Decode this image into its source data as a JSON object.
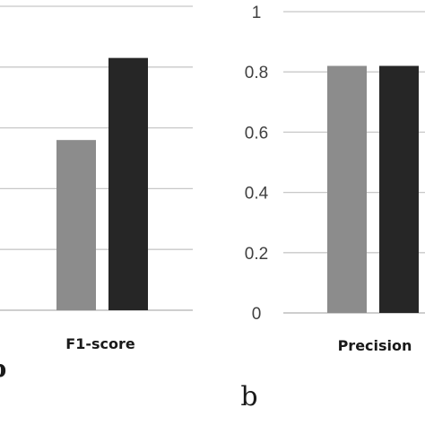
{
  "chart_data": [
    {
      "type": "bar",
      "panel_label": "b",
      "categories": [
        "F1-score"
      ],
      "series": [
        {
          "values": [
            0.56
          ],
          "color": "#8c8c8c"
        },
        {
          "values": [
            0.83
          ],
          "color": "#262626"
        }
      ],
      "ylim": [
        0,
        1
      ],
      "yticks": [],
      "grid": true
    },
    {
      "type": "bar",
      "panel_label": "b",
      "categories": [
        "Precision"
      ],
      "series": [
        {
          "values": [
            0.82
          ],
          "color": "#8c8c8c"
        },
        {
          "values": [
            0.82
          ],
          "color": "#262626"
        }
      ],
      "ylim": [
        0,
        1
      ],
      "yticks": [
        "0",
        "0.2",
        "0.4",
        "0.6",
        "0.8",
        "1"
      ],
      "grid": true
    }
  ]
}
